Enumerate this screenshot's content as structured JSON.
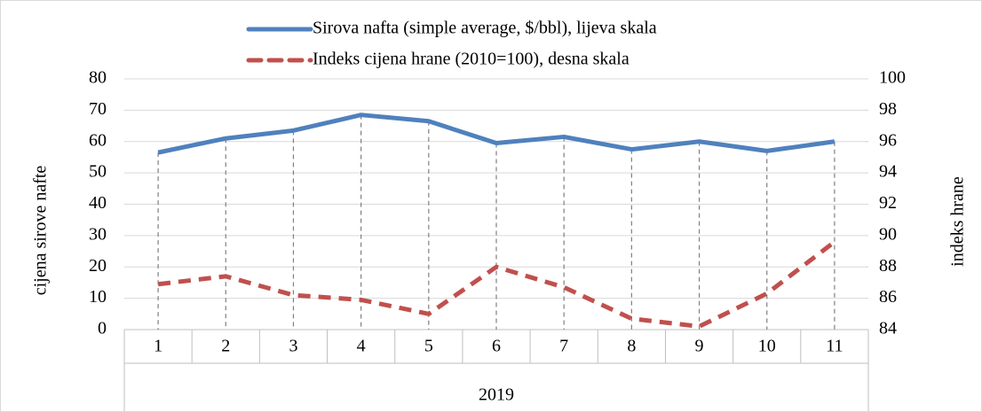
{
  "chart_data": {
    "type": "line",
    "categories": [
      "1",
      "2",
      "3",
      "4",
      "5",
      "6",
      "7",
      "8",
      "9",
      "10",
      "11"
    ],
    "group_label": "2019",
    "ylabel": "cijena sirove nafte",
    "y2label": "indeks hrane",
    "ylim": [
      0,
      80
    ],
    "yticks": [
      0,
      10,
      20,
      30,
      40,
      50,
      60,
      70,
      80
    ],
    "y2lim": [
      84,
      100
    ],
    "y2ticks": [
      84,
      86,
      88,
      90,
      92,
      94,
      96,
      98,
      100
    ],
    "grid": true,
    "legend": "top",
    "series": [
      {
        "name": "Sirova nafta (simple average, $/bbl), lijeva skala",
        "color": "#4f81bd",
        "values": [
          56.5,
          61,
          63.5,
          68.5,
          66.5,
          59.5,
          61.5,
          57.5,
          60,
          57,
          60
        ]
      },
      {
        "name": "Indeks cijena hrane (2010=100), desna skala",
        "color": "#c0504d",
        "axis": "y2",
        "dashed": true,
        "values": [
          86.9,
          87.4,
          86.2,
          85.9,
          85.0,
          88.0,
          86.7,
          84.7,
          84.2,
          86.3,
          89.6
        ]
      }
    ]
  }
}
